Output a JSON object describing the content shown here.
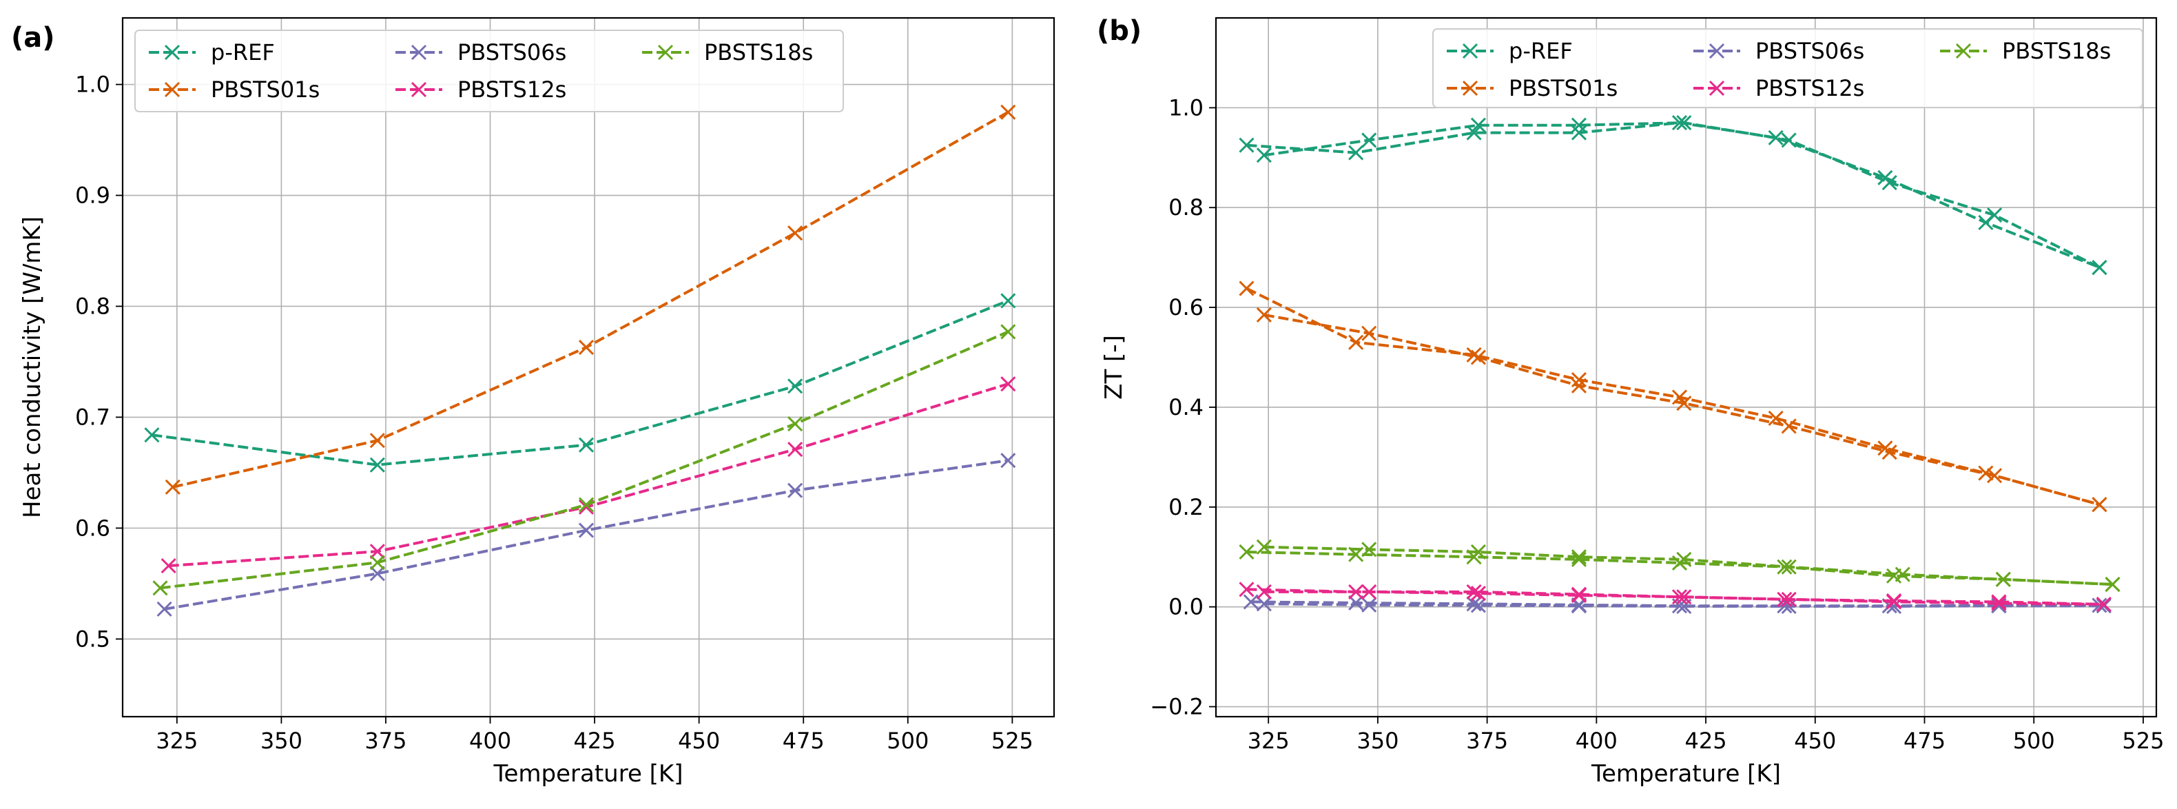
{
  "colors": {
    "p-REF": "#1b9e77",
    "PBSTS01s": "#d95f02",
    "PBSTS06s": "#7570b3",
    "PBSTS12s": "#e7298a",
    "PBSTS18s": "#66a61e"
  },
  "chart_data": [
    {
      "type": "line",
      "panel_label": "(a)",
      "title": "",
      "xlabel": "Temperature [K]",
      "ylabel": "Heat conductivity [W/mK]",
      "xlim": [
        312,
        535
      ],
      "ylim": [
        0.43,
        1.06
      ],
      "xticks": [
        325,
        350,
        375,
        400,
        425,
        450,
        475,
        500,
        525
      ],
      "xtick_labels": [
        "325",
        "350",
        "375",
        "400",
        "425",
        "450",
        "475",
        "500",
        "525"
      ],
      "yticks": [
        0.5,
        0.6,
        0.7,
        0.8,
        0.9,
        1.0
      ],
      "ytick_labels": [
        "0.5",
        "0.6",
        "0.7",
        "0.8",
        "0.9",
        "1.0"
      ],
      "grid": true,
      "legend_position": "top-left",
      "series": [
        {
          "name": "p-REF",
          "x": [
            319,
            373,
            423,
            473,
            524
          ],
          "y": [
            0.684,
            0.657,
            0.675,
            0.728,
            0.805
          ]
        },
        {
          "name": "PBSTS01s",
          "x": [
            324,
            373,
            423,
            473,
            524
          ],
          "y": [
            0.637,
            0.679,
            0.763,
            0.866,
            0.975
          ]
        },
        {
          "name": "PBSTS06s",
          "x": [
            322,
            373,
            423,
            473,
            524
          ],
          "y": [
            0.527,
            0.559,
            0.598,
            0.634,
            0.661
          ]
        },
        {
          "name": "PBSTS12s",
          "x": [
            323,
            373,
            423,
            473,
            524
          ],
          "y": [
            0.566,
            0.579,
            0.619,
            0.671,
            0.73
          ]
        },
        {
          "name": "PBSTS18s",
          "x": [
            321,
            373,
            423,
            473,
            524
          ],
          "y": [
            0.546,
            0.569,
            0.621,
            0.694,
            0.777
          ]
        }
      ]
    },
    {
      "type": "line",
      "panel_label": "(b)",
      "title": "",
      "xlabel": "Temperature [K]",
      "ylabel": "ZT [-]",
      "xlim": [
        313,
        528
      ],
      "ylim": [
        -0.22,
        1.18
      ],
      "xticks": [
        325,
        350,
        375,
        400,
        425,
        450,
        475,
        500,
        525
      ],
      "xtick_labels": [
        "325",
        "350",
        "375",
        "400",
        "425",
        "450",
        "475",
        "500",
        "525"
      ],
      "yticks": [
        -0.2,
        0.0,
        0.2,
        0.4,
        0.6,
        0.8,
        1.0
      ],
      "ytick_labels": [
        "−0.2",
        "0.0",
        "0.2",
        "0.4",
        "0.6",
        "0.8",
        "1.0"
      ],
      "grid": true,
      "legend_position": "top-right",
      "series": [
        {
          "name": "p-REF",
          "x": [
            320,
            345,
            372,
            396,
            419,
            441,
            466,
            489,
            515
          ],
          "y": [
            0.925,
            0.91,
            0.95,
            0.95,
            0.97,
            0.94,
            0.86,
            0.77,
            0.68
          ]
        },
        {
          "name": "p-REF",
          "x": [
            324,
            348,
            373,
            396,
            420,
            444,
            467,
            491,
            515
          ],
          "y": [
            0.905,
            0.935,
            0.965,
            0.965,
            0.97,
            0.935,
            0.85,
            0.785,
            0.68
          ]
        },
        {
          "name": "PBSTS01s",
          "x": [
            320,
            345,
            372,
            396,
            419,
            441,
            466,
            489,
            515
          ],
          "y": [
            0.638,
            0.53,
            0.505,
            0.455,
            0.42,
            0.378,
            0.318,
            0.268,
            0.205
          ]
        },
        {
          "name": "PBSTS01s",
          "x": [
            324,
            348,
            373,
            396,
            420,
            444,
            467,
            491,
            515
          ],
          "y": [
            0.585,
            0.548,
            0.5,
            0.443,
            0.408,
            0.362,
            0.31,
            0.263,
            0.205
          ]
        },
        {
          "name": "PBSTS06s",
          "x": [
            321,
            345,
            372,
            396,
            419,
            443,
            467,
            492,
            515
          ],
          "y": [
            0.01,
            0.008,
            0.006,
            0.004,
            0.002,
            0.002,
            0.002,
            0.003,
            0.003
          ]
        },
        {
          "name": "PBSTS06s",
          "x": [
            324,
            348,
            373,
            396,
            420,
            444,
            468,
            492,
            516
          ],
          "y": [
            0.006,
            0.004,
            0.003,
            0.002,
            0.001,
            0.001,
            0.001,
            0.002,
            0.002
          ]
        },
        {
          "name": "PBSTS12s",
          "x": [
            320,
            345,
            372,
            396,
            419,
            443,
            468,
            492,
            516
          ],
          "y": [
            0.035,
            0.03,
            0.03,
            0.025,
            0.02,
            0.015,
            0.012,
            0.01,
            0.005
          ]
        },
        {
          "name": "PBSTS12s",
          "x": [
            324,
            348,
            373,
            396,
            420,
            444,
            468,
            492,
            516
          ],
          "y": [
            0.03,
            0.03,
            0.027,
            0.023,
            0.02,
            0.015,
            0.01,
            0.007,
            0.005
          ]
        },
        {
          "name": "PBSTS18s",
          "x": [
            320,
            345,
            372,
            396,
            419,
            443,
            468,
            493,
            518
          ],
          "y": [
            0.11,
            0.105,
            0.1,
            0.095,
            0.088,
            0.08,
            0.062,
            0.055,
            0.045
          ]
        },
        {
          "name": "PBSTS18s",
          "x": [
            324,
            348,
            373,
            396,
            420,
            444,
            470,
            493,
            518
          ],
          "y": [
            0.12,
            0.115,
            0.11,
            0.1,
            0.095,
            0.08,
            0.065,
            0.055,
            0.045
          ]
        }
      ]
    }
  ],
  "legend_entries": [
    "p-REF",
    "PBSTS01s",
    "PBSTS06s",
    "PBSTS12s",
    "PBSTS18s"
  ]
}
